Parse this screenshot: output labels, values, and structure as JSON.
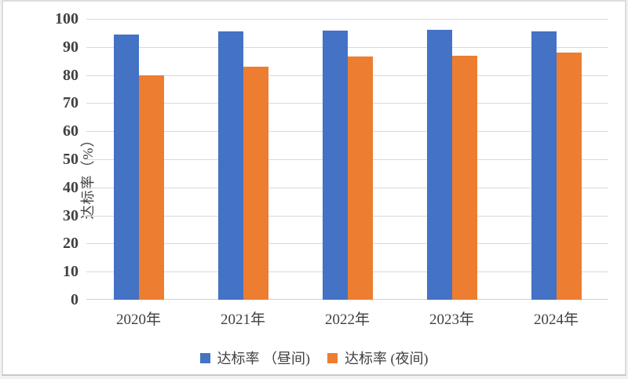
{
  "chart_data": {
    "type": "bar",
    "title": "",
    "categories": [
      "2020年",
      "2021年",
      "2022年",
      "2023年",
      "2024年"
    ],
    "series": [
      {
        "name": "达标率 （昼间)",
        "color": "#4472C4",
        "values": [
          94.5,
          95.4,
          95.9,
          96.2,
          95.6
        ]
      },
      {
        "name": "达标率 (夜间)",
        "color": "#ED7D31",
        "values": [
          80,
          83,
          86.5,
          87,
          88
        ]
      }
    ],
    "xlabel": "",
    "ylabel": "达标率（%）",
    "ylim": [
      0,
      100
    ],
    "yticks": [
      0,
      10,
      20,
      30,
      40,
      50,
      60,
      70,
      80,
      90,
      100
    ],
    "grid": true,
    "legend_position": "bottom"
  },
  "colors": {
    "grid": "#d9d9d9",
    "axis": "#d0d0d0",
    "text": "#404040",
    "frame_border": "#dcdcdc",
    "background": "#ffffff"
  }
}
